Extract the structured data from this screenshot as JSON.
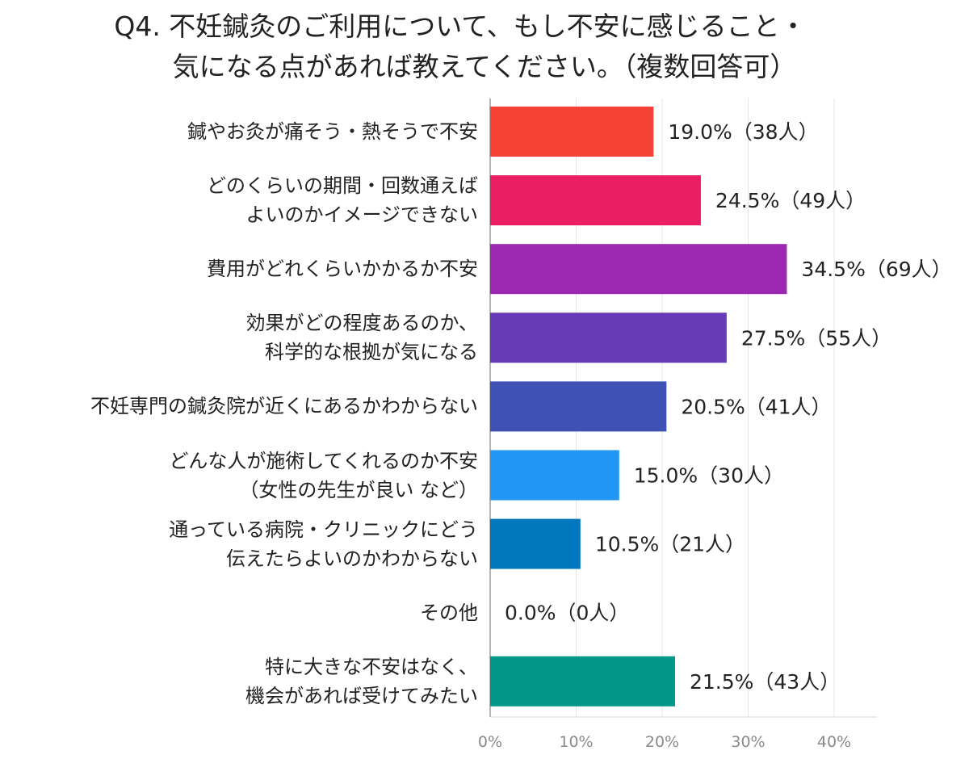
{
  "title": {
    "line1": "Q4. 不妊鍼灸のご利用について、もし不安に感じること・",
    "line2": "気になる点があれば教えてください。（複数回答可）"
  },
  "chart_data": {
    "type": "bar",
    "orientation": "horizontal",
    "title": "Q4. 不妊鍼灸のご利用について、もし不安に感じること・気になる点があれば教えてください。（複数回答可）",
    "categories": [
      [
        "鍼やお灸が痛そう・熱そうで不安"
      ],
      [
        "どのくらいの期間・回数通えば",
        "よいのかイメージできない"
      ],
      [
        "費用がどれくらいかかるか不安"
      ],
      [
        "効果がどの程度あるのか、",
        "科学的な根拠が気になる"
      ],
      [
        "不妊専門の鍼灸院が近くにあるかわからない"
      ],
      [
        "どんな人が施術してくれるのか不安",
        "（女性の先生が良い など）"
      ],
      [
        "通っている病院・クリニックにどう",
        "伝えたらよいのかわからない"
      ],
      [
        "その他"
      ],
      [
        "特に大きな不安はなく、",
        "機会があれば受けてみたい"
      ]
    ],
    "values": [
      19.0,
      24.5,
      34.5,
      27.5,
      20.5,
      15.0,
      10.5,
      0.0,
      21.5
    ],
    "data_labels": [
      "19.0%（38人）",
      "24.5%（49人）",
      "34.5%（69人）",
      "27.5%（55人）",
      "20.5%（41人）",
      "15.0%（30人）",
      "10.5%（21人）",
      "0.0%（0人）",
      "21.5%（43人）"
    ],
    "colors": [
      "#f44336",
      "#e91e63",
      "#9c27b0",
      "#673ab7",
      "#3f51b5",
      "#2196f3",
      "#0277bd",
      "#00acc1",
      "#009688"
    ],
    "xlim": [
      0,
      40
    ],
    "x_ticks": [
      "0%",
      "10%",
      "20%",
      "30%",
      "40%"
    ],
    "grid": true
  }
}
